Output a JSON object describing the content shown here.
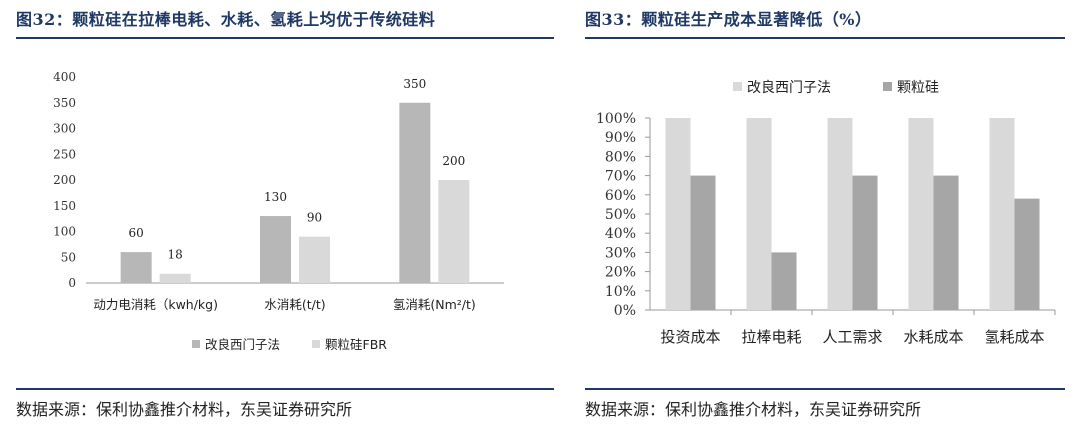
{
  "left": {
    "title": "图32：颗粒硅在拉棒电耗、水耗、氢耗上均优于传统硅料",
    "source": "数据来源：保利协鑫推介材料，东吴证券研究所"
  },
  "right": {
    "title": "图33：颗粒硅生产成本显著降低（%）",
    "source": "数据来源：保利协鑫推介材料，东吴证券研究所"
  },
  "colors": {
    "series_a": "#b7b7b7",
    "series_b": "#d9d9d9",
    "navy": "#1f3864",
    "axis": "#999999"
  },
  "chart_data": [
    {
      "type": "bar",
      "title": "图32：颗粒硅在拉棒电耗、水耗、氢耗上均优于传统硅料",
      "categories": [
        "动力电消耗（kwh/kg)",
        "水消耗(t/t)",
        "氢消耗(Nm²/t)"
      ],
      "series": [
        {
          "name": "改良西门子法",
          "values": [
            60,
            130,
            350
          ]
        },
        {
          "name": "颗粒硅FBR",
          "values": [
            18,
            90,
            200
          ]
        }
      ],
      "ylim": [
        0,
        400
      ],
      "yticks": [
        0,
        50,
        100,
        150,
        200,
        250,
        300,
        350,
        400
      ],
      "data_labels": true,
      "grid": false,
      "legend": "bottom"
    },
    {
      "type": "bar",
      "title": "图33：颗粒硅生产成本显著降低（%）",
      "categories": [
        "投资成本",
        "拉棒电耗",
        "人工需求",
        "水耗成本",
        "氢耗成本"
      ],
      "series": [
        {
          "name": "改良西门子法",
          "values": [
            100,
            100,
            100,
            100,
            100
          ]
        },
        {
          "name": "颗粒硅",
          "values": [
            70,
            30,
            70,
            70,
            58
          ]
        }
      ],
      "ylim": [
        0,
        100
      ],
      "yticks": [
        "0%",
        "10%",
        "20%",
        "30%",
        "40%",
        "50%",
        "60%",
        "70%",
        "80%",
        "90%",
        "100%"
      ],
      "data_labels": false,
      "grid": false,
      "legend": "top"
    }
  ]
}
